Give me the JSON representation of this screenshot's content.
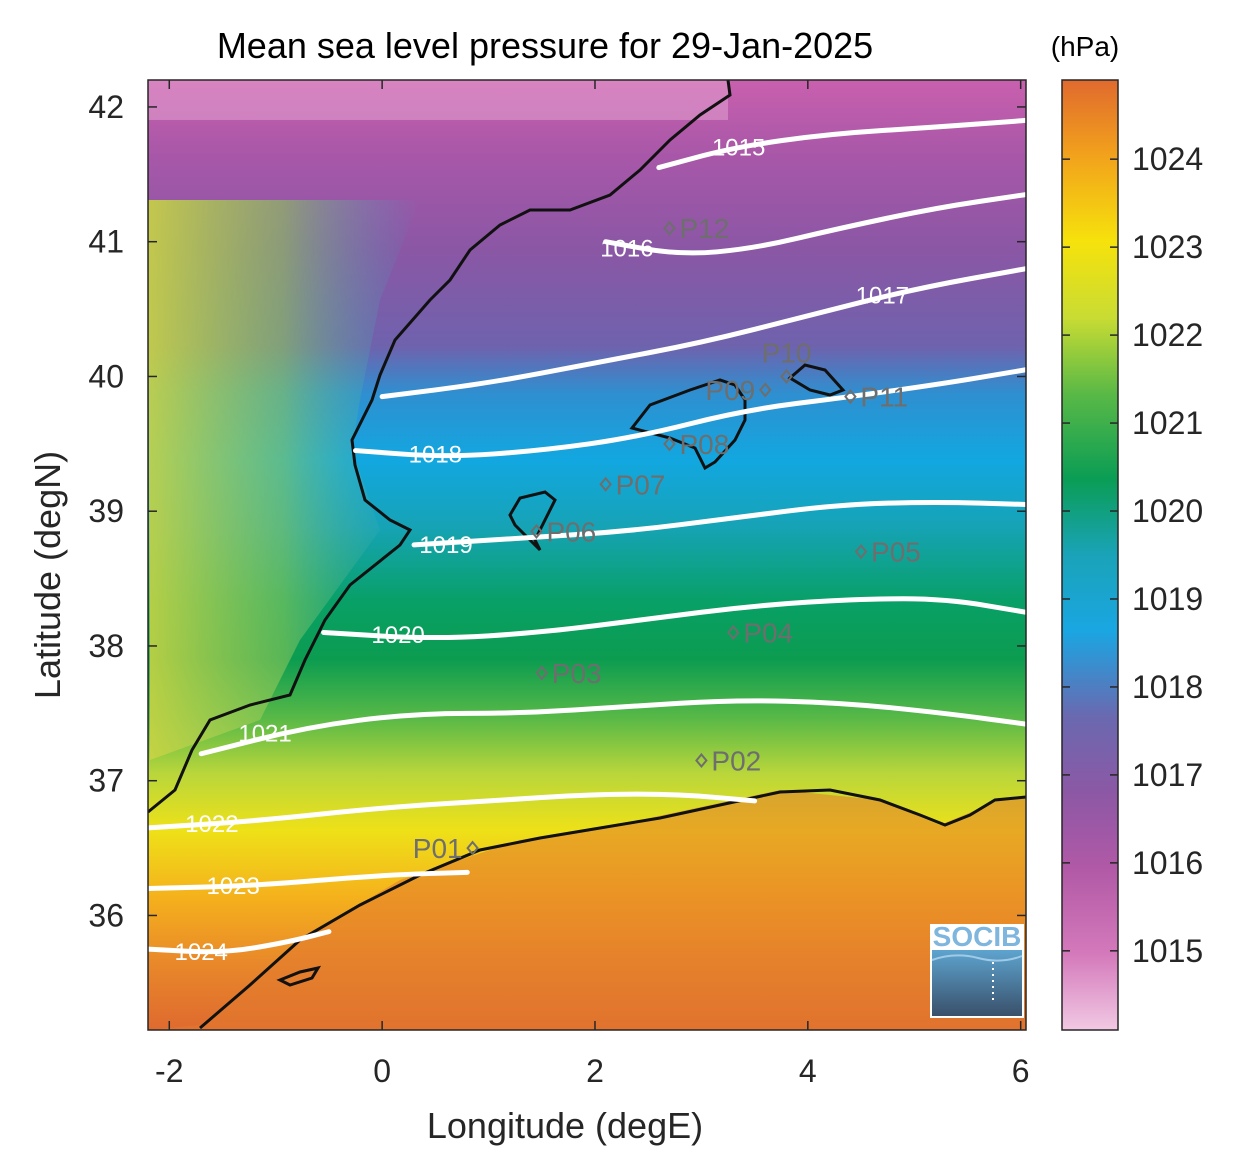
{
  "title": "Mean sea level pressure for 29-Jan-2025",
  "colorbar": {
    "unit": "(hPa)",
    "min": 1014.1,
    "max": 1024.9,
    "ticks": [
      1015,
      1016,
      1017,
      1018,
      1019,
      1020,
      1021,
      1022,
      1023,
      1024
    ]
  },
  "axes": {
    "xlabel": "Longitude (degE)",
    "ylabel": "Latitude (degN)",
    "xlim": [
      -2.2,
      6.05
    ],
    "ylim": [
      35.15,
      42.2
    ],
    "xticks": [
      -2,
      0,
      2,
      4,
      6
    ],
    "yticks": [
      36,
      37,
      38,
      39,
      40,
      41,
      42
    ]
  },
  "isobars": [
    {
      "value": 1015,
      "label": "1015",
      "points": [
        [
          2.6,
          41.55
        ],
        [
          3.3,
          41.7
        ],
        [
          4.2,
          41.8
        ],
        [
          5.2,
          41.85
        ],
        [
          6.05,
          41.9
        ]
      ],
      "labelAt": [
        3.35,
        41.7
      ]
    },
    {
      "value": 1016,
      "label": "1016",
      "points": [
        [
          2.1,
          41.0
        ],
        [
          2.8,
          40.9
        ],
        [
          3.5,
          40.95
        ],
        [
          4.3,
          41.1
        ],
        [
          5.2,
          41.25
        ],
        [
          6.05,
          41.35
        ]
      ],
      "labelAt": [
        2.3,
        40.95
      ]
    },
    {
      "value": 1017,
      "label": "1017",
      "points": [
        [
          0.0,
          39.85
        ],
        [
          1.0,
          39.95
        ],
        [
          2.0,
          40.1
        ],
        [
          3.0,
          40.25
        ],
        [
          4.0,
          40.45
        ],
        [
          5.0,
          40.65
        ],
        [
          6.05,
          40.8
        ]
      ],
      "labelAt": [
        4.7,
        40.6
      ]
    },
    {
      "value": 1018,
      "label": "1018",
      "points": [
        [
          -0.25,
          39.45
        ],
        [
          0.6,
          39.4
        ],
        [
          1.5,
          39.45
        ],
        [
          2.4,
          39.55
        ],
        [
          3.4,
          39.75
        ],
        [
          4.4,
          39.85
        ],
        [
          5.3,
          39.95
        ],
        [
          6.05,
          40.05
        ]
      ],
      "labelAt": [
        0.5,
        39.42
      ]
    },
    {
      "value": 1019,
      "label": "1019",
      "points": [
        [
          0.3,
          38.75
        ],
        [
          1.3,
          38.8
        ],
        [
          2.3,
          38.85
        ],
        [
          3.3,
          38.95
        ],
        [
          4.3,
          39.05
        ],
        [
          5.2,
          39.07
        ],
        [
          6.05,
          39.05
        ]
      ],
      "labelAt": [
        0.6,
        38.75
      ]
    },
    {
      "value": 1020,
      "label": "1020",
      "points": [
        [
          -0.55,
          38.1
        ],
        [
          0.5,
          38.05
        ],
        [
          1.5,
          38.1
        ],
        [
          2.5,
          38.2
        ],
        [
          3.5,
          38.3
        ],
        [
          4.5,
          38.35
        ],
        [
          5.3,
          38.35
        ],
        [
          6.05,
          38.25
        ]
      ],
      "labelAt": [
        0.15,
        38.08
      ]
    },
    {
      "value": 1021,
      "label": "1021",
      "points": [
        [
          -1.7,
          37.2
        ],
        [
          -0.7,
          37.4
        ],
        [
          0.3,
          37.5
        ],
        [
          1.3,
          37.5
        ],
        [
          2.3,
          37.55
        ],
        [
          3.3,
          37.6
        ],
        [
          4.3,
          37.58
        ],
        [
          5.3,
          37.5
        ],
        [
          6.05,
          37.42
        ]
      ],
      "labelAt": [
        -1.1,
        37.35
      ]
    },
    {
      "value": 1022,
      "label": "1022",
      "points": [
        [
          -2.2,
          36.65
        ],
        [
          -1.2,
          36.7
        ],
        [
          0.0,
          36.8
        ],
        [
          1.0,
          36.85
        ],
        [
          2.0,
          36.9
        ],
        [
          2.8,
          36.9
        ],
        [
          3.5,
          36.85
        ]
      ],
      "labelAt": [
        -1.6,
        36.68
      ]
    },
    {
      "value": 1023,
      "label": "1023",
      "points": [
        [
          -2.2,
          36.2
        ],
        [
          -1.2,
          36.22
        ],
        [
          0.0,
          36.3
        ],
        [
          0.8,
          36.32
        ]
      ],
      "labelAt": [
        -1.4,
        36.22
      ]
    },
    {
      "value": 1024,
      "label": "1024",
      "points": [
        [
          -2.2,
          35.75
        ],
        [
          -1.5,
          35.72
        ],
        [
          -0.9,
          35.8
        ],
        [
          -0.5,
          35.88
        ]
      ],
      "labelAt": [
        -1.7,
        35.73
      ]
    }
  ],
  "stations": [
    {
      "label": "P01",
      "lon": 0.85,
      "lat": 36.5,
      "labelSide": "left"
    },
    {
      "label": "P02",
      "lon": 3.0,
      "lat": 37.15,
      "labelSide": "right"
    },
    {
      "label": "P03",
      "lon": 1.5,
      "lat": 37.8,
      "labelSide": "right"
    },
    {
      "label": "P04",
      "lon": 3.3,
      "lat": 38.1,
      "labelSide": "right"
    },
    {
      "label": "P05",
      "lon": 4.5,
      "lat": 38.7,
      "labelSide": "right"
    },
    {
      "label": "P06",
      "lon": 1.45,
      "lat": 38.85,
      "labelSide": "right"
    },
    {
      "label": "P07",
      "lon": 2.1,
      "lat": 39.2,
      "labelSide": "right"
    },
    {
      "label": "P08",
      "lon": 2.7,
      "lat": 39.5,
      "labelSide": "right"
    },
    {
      "label": "P09",
      "lon": 3.6,
      "lat": 39.9,
      "labelSide": "left"
    },
    {
      "label": "P10",
      "lon": 3.8,
      "lat": 40.0,
      "labelSide": "above"
    },
    {
      "label": "P11",
      "lon": 4.4,
      "lat": 39.85,
      "labelSide": "right"
    },
    {
      "label": "P12",
      "lon": 2.7,
      "lat": 41.1,
      "labelSide": "right"
    }
  ],
  "logo": {
    "text": "SOCIB"
  }
}
